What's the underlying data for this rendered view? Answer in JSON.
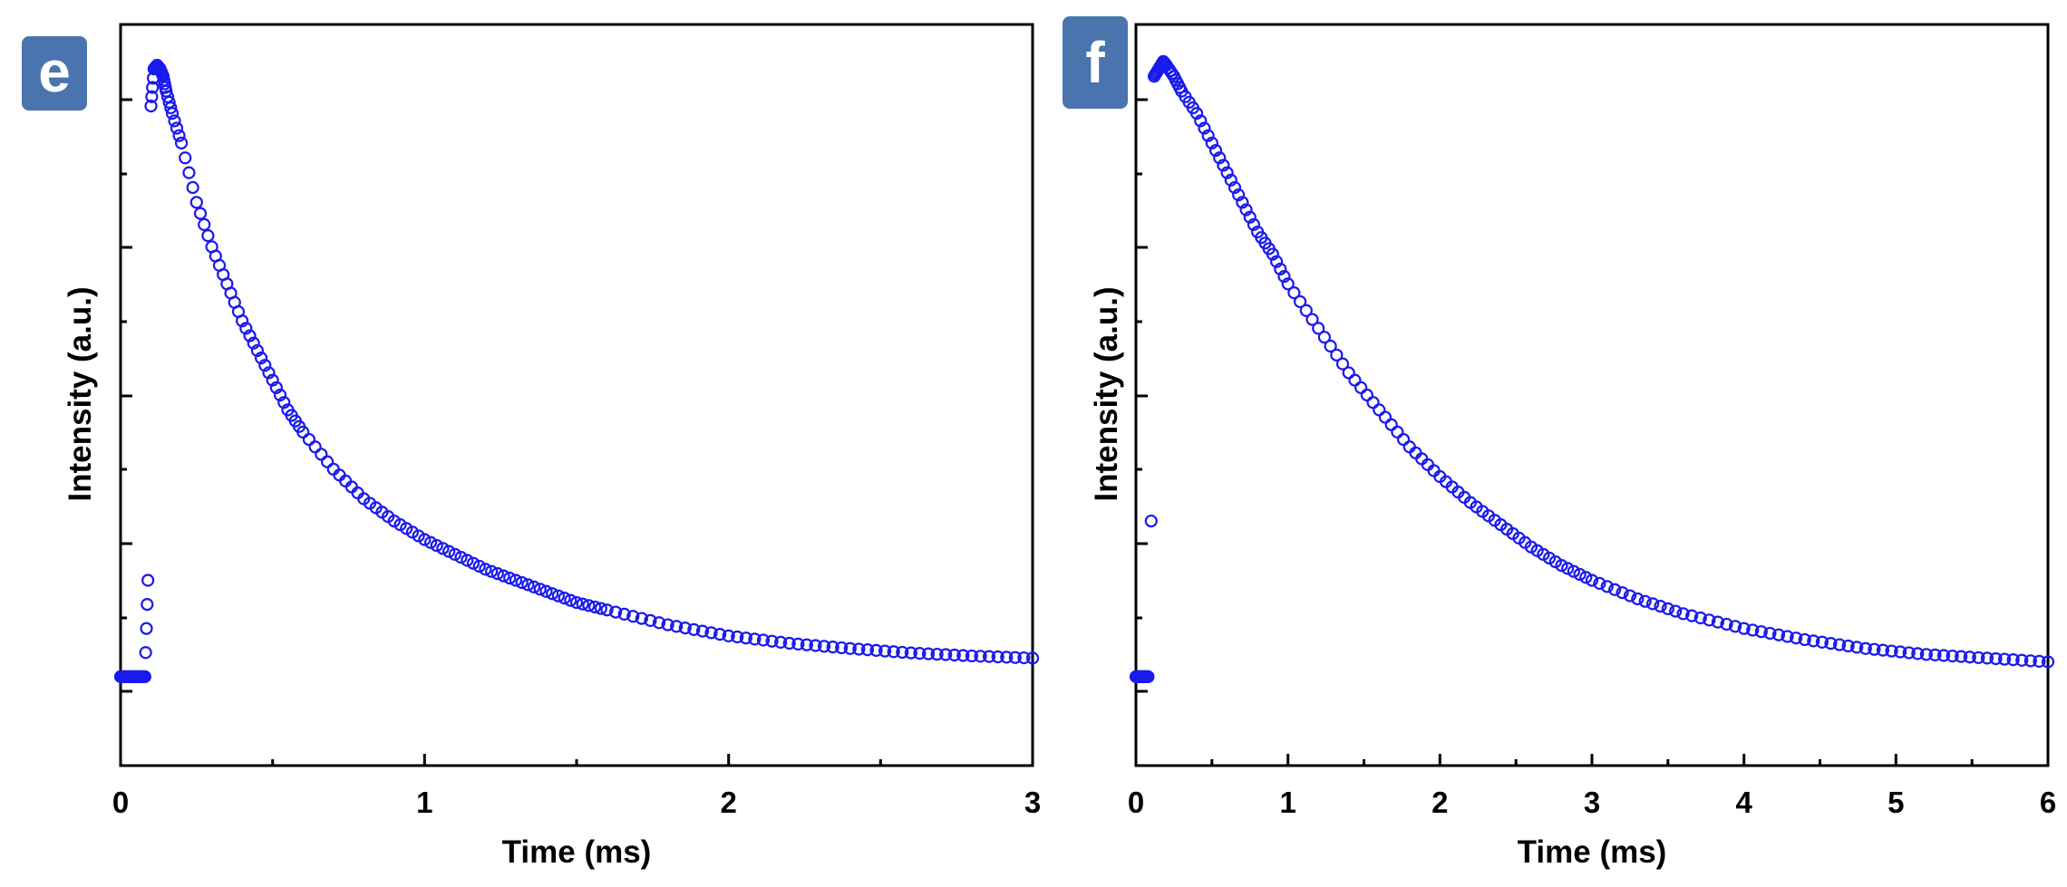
{
  "chart_data": [
    {
      "type": "scatter",
      "panel_label": "e",
      "xlabel": "Time (ms)",
      "ylabel": "Intensity (a.u.)",
      "xlim": [
        0,
        3
      ],
      "x_ticks": [
        0,
        1,
        2,
        3
      ],
      "x_tick_labels": [
        "0",
        "1",
        "2",
        "3"
      ],
      "ylim": [
        0,
        1
      ],
      "y_tick_labels_shown": false,
      "marker": "open-circle",
      "color": "#1a1aee",
      "grid": false,
      "series": [
        {
          "x": [
            0.0,
            0.02,
            0.04,
            0.06,
            0.08,
            0.09,
            0.1,
            0.11,
            0.12,
            0.13,
            0.14,
            0.15,
            0.17,
            0.2,
            0.25,
            0.3,
            0.35,
            0.4,
            0.45,
            0.5,
            0.55,
            0.6,
            0.7,
            0.8,
            0.9,
            1.0,
            1.1,
            1.2,
            1.3,
            1.4,
            1.5,
            1.6,
            1.8,
            2.0,
            2.2,
            2.4,
            2.6,
            2.8,
            3.0
          ],
          "y": [
            0.12,
            0.12,
            0.12,
            0.12,
            0.12,
            0.25,
            0.89,
            0.94,
            0.945,
            0.94,
            0.93,
            0.91,
            0.88,
            0.84,
            0.76,
            0.7,
            0.65,
            0.6,
            0.56,
            0.52,
            0.48,
            0.45,
            0.4,
            0.36,
            0.33,
            0.305,
            0.285,
            0.265,
            0.25,
            0.235,
            0.22,
            0.21,
            0.19,
            0.175,
            0.165,
            0.158,
            0.152,
            0.148,
            0.145
          ]
        }
      ]
    },
    {
      "type": "scatter",
      "panel_label": "f",
      "xlabel": "Time (ms)",
      "ylabel": "Intensity (a.u.)",
      "xlim": [
        0,
        6
      ],
      "x_ticks": [
        0,
        1,
        2,
        3,
        4,
        5,
        6
      ],
      "x_tick_labels": [
        "0",
        "1",
        "2",
        "3",
        "4",
        "5",
        "6"
      ],
      "ylim": [
        0,
        1
      ],
      "y_tick_labels_shown": false,
      "marker": "open-circle",
      "color": "#1a1aee",
      "grid": false,
      "series": [
        {
          "x": [
            0.0,
            0.03,
            0.06,
            0.08,
            0.1,
            0.12,
            0.15,
            0.18,
            0.2,
            0.25,
            0.3,
            0.4,
            0.5,
            0.6,
            0.7,
            0.8,
            0.9,
            1.0,
            1.2,
            1.4,
            1.6,
            1.8,
            2.0,
            2.2,
            2.4,
            2.6,
            2.8,
            3.0,
            3.3,
            3.6,
            4.0,
            4.4,
            4.8,
            5.2,
            5.6,
            6.0
          ],
          "y": [
            0.12,
            0.12,
            0.12,
            0.12,
            0.33,
            0.93,
            0.94,
            0.95,
            0.945,
            0.93,
            0.91,
            0.88,
            0.84,
            0.8,
            0.76,
            0.72,
            0.69,
            0.65,
            0.59,
            0.53,
            0.48,
            0.43,
            0.39,
            0.355,
            0.325,
            0.295,
            0.27,
            0.25,
            0.225,
            0.205,
            0.185,
            0.17,
            0.158,
            0.15,
            0.145,
            0.14
          ]
        }
      ]
    }
  ]
}
